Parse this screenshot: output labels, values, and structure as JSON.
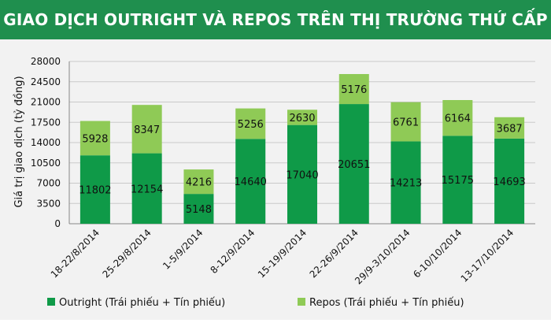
{
  "title": "GIAO DỊCH OUTRIGHT VÀ REPOS TRÊN THỊ TRƯỜNG THỨ CẤP",
  "colors": {
    "banner": "#1f8f4e",
    "outright": "#0f9a48",
    "repos": "#8fca56"
  },
  "chart_data": {
    "type": "bar",
    "stacked": true,
    "categories": [
      "18-22/8/2014",
      "25-29/8/2014",
      "1-5/9/2014",
      "8-12/9/2014",
      "15-19/9/2014",
      "22-26/9/2014",
      "29/9-3/10/2014",
      "6-10/10/2014",
      "13-17/10/2014"
    ],
    "series": [
      {
        "name": "Outright (Trái phiếu + Tín phiếu)",
        "values": [
          11802,
          12154,
          5148,
          14640,
          17040,
          20651,
          14213,
          15175,
          14693
        ]
      },
      {
        "name": "Repos (Trái phiếu + Tín phiếu)",
        "values": [
          5928,
          8347,
          4216,
          5256,
          2630,
          5176,
          6761,
          6164,
          3687
        ]
      }
    ],
    "ylabel": "Giá trị giao dịch (tỷ đồng)",
    "yticks": [
      0,
      3500,
      7000,
      10500,
      14000,
      17500,
      21000,
      24500,
      28000
    ],
    "ylim": [
      0,
      28000
    ],
    "legend": "bottom"
  }
}
